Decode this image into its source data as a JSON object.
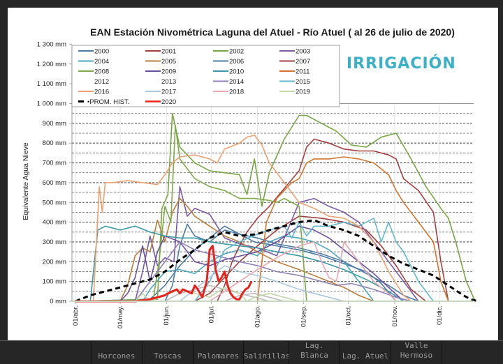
{
  "window": {
    "bottom_tabs": [
      "Horcones",
      "Toscas",
      "Palomares",
      "Salinillas",
      "Lag. Blanca",
      "Lag. Atuel",
      "Valle Hermoso"
    ]
  },
  "logo": {
    "text": "IRRIGACIÓN",
    "color": "#3bb0c9"
  },
  "chart_data": {
    "type": "line",
    "title": "EAN Estación Nivométrica Laguna del Atuel - Río Atuel  ( al 26 de julio de 2020)",
    "xlabel": "",
    "ylabel": "Equivalente Agua Nieve",
    "ylim": [
      0,
      1300
    ],
    "yticks": [
      "0 mm",
      "100 mm",
      "200 mm",
      "300 mm",
      "400 mm",
      "500 mm",
      "600 mm",
      "700 mm",
      "800 mm",
      "900 mm",
      "1 000 mm",
      "1 100 mm",
      "1 200 mm",
      "1 300 mm"
    ],
    "ytick_values": [
      0,
      100,
      200,
      300,
      400,
      500,
      600,
      700,
      800,
      900,
      1000,
      1100,
      1200,
      1300
    ],
    "x_unit": "days since 01/abr.",
    "xlim": [
      0,
      274
    ],
    "xticks": [
      "01/abr.",
      "01/may.",
      "01/jun.",
      "01/jul.",
      "01/ago.",
      "01/sep.",
      "01/oct.",
      "01/nov.",
      "01/dic."
    ],
    "xtick_values": [
      0,
      30,
      61,
      91,
      122,
      153,
      183,
      214,
      244
    ],
    "grid": "horizontal dashed",
    "legend_position": "top-left",
    "legend": [
      "2000",
      "2001",
      "2002",
      "2003",
      "2004",
      "2005",
      "2006",
      "2007",
      "2008",
      "2009",
      "2010",
      "2011",
      "2012",
      "2013",
      "2014",
      "2015",
      "2016",
      "2017",
      "2018",
      "2019",
      "PROM. HIST.",
      "2020"
    ],
    "series": [
      {
        "name": "2000",
        "color": "#4a7aa8",
        "style": "solid",
        "x": [
          0,
          50,
          60,
          70,
          80,
          90,
          100,
          110,
          120,
          135,
          150,
          165,
          180,
          195,
          205,
          215
        ],
        "y": [
          0,
          10,
          80,
          180,
          260,
          320,
          380,
          340,
          300,
          280,
          260,
          230,
          190,
          150,
          90,
          0
        ]
      },
      {
        "name": "2001",
        "color": "#a0403e",
        "style": "solid",
        "x": [
          0,
          80,
          90,
          100,
          110,
          122,
          135,
          150,
          165,
          180,
          195,
          205,
          215,
          225,
          235
        ],
        "y": [
          0,
          0,
          40,
          120,
          200,
          280,
          360,
          430,
          420,
          400,
          360,
          280,
          180,
          60,
          0
        ]
      },
      {
        "name": "2002",
        "color": "#77a744",
        "style": "solid",
        "x": [
          0,
          55,
          58,
          62,
          65,
          70,
          80,
          90,
          100,
          110,
          115,
          120,
          125,
          130,
          140,
          150,
          155,
          160,
          165,
          175,
          185,
          195,
          205,
          215,
          225,
          235,
          245,
          250,
          255,
          262,
          268
        ],
        "y": [
          0,
          10,
          470,
          540,
          950,
          780,
          700,
          660,
          650,
          640,
          540,
          720,
          480,
          650,
          820,
          940,
          940,
          920,
          900,
          860,
          790,
          780,
          830,
          850,
          720,
          580,
          470,
          420,
          300,
          100,
          0
        ]
      },
      {
        "name": "2003",
        "color": "#7b5aa6",
        "style": "solid",
        "x": [
          0,
          40,
          45,
          50,
          55,
          60,
          66,
          70,
          75,
          80,
          90,
          100,
          110,
          122,
          135,
          150,
          160,
          170,
          180,
          190,
          200,
          210,
          220,
          230
        ],
        "y": [
          0,
          0,
          150,
          330,
          180,
          220,
          200,
          580,
          430,
          470,
          440,
          320,
          290,
          270,
          230,
          500,
          520,
          480,
          450,
          400,
          300,
          200,
          100,
          0
        ]
      },
      {
        "name": "2004",
        "color": "#4ba7c1",
        "style": "solid",
        "x": [
          0,
          45,
          50,
          60,
          70,
          80,
          90,
          100,
          110,
          122,
          130,
          140,
          150,
          160,
          170,
          180,
          190,
          200
        ],
        "y": [
          0,
          0,
          60,
          150,
          160,
          140,
          200,
          240,
          260,
          230,
          300,
          330,
          320,
          300,
          260,
          200,
          100,
          0
        ]
      },
      {
        "name": "2005",
        "color": "#b97f3b",
        "style": "solid",
        "x": [
          0,
          30,
          35,
          40,
          45,
          50,
          55,
          60,
          65,
          70,
          75,
          80,
          90,
          100,
          110,
          122,
          135,
          150,
          160,
          170,
          180,
          190,
          200
        ],
        "y": [
          0,
          0,
          80,
          230,
          270,
          250,
          410,
          300,
          450,
          520,
          480,
          430,
          380,
          330,
          300,
          250,
          200,
          160,
          130,
          100,
          70,
          30,
          0
        ]
      },
      {
        "name": "2006",
        "color": "#4c7ea8",
        "style": "solid",
        "x": [
          0,
          60,
          65,
          70,
          75,
          80,
          90,
          100,
          110,
          122,
          135,
          150,
          165,
          180,
          190,
          200,
          210,
          220,
          230
        ],
        "y": [
          0,
          0,
          80,
          280,
          390,
          330,
          300,
          360,
          340,
          320,
          290,
          270,
          240,
          200,
          160,
          120,
          80,
          30,
          0
        ]
      },
      {
        "name": "2007",
        "color": "#a33f3f",
        "style": "solid",
        "x": [
          0,
          95,
          100,
          105,
          110,
          115,
          122,
          130,
          140,
          150,
          155,
          160,
          170,
          180,
          190,
          200,
          210,
          215,
          220,
          230,
          240,
          245,
          250
        ],
        "y": [
          0,
          0,
          80,
          200,
          280,
          350,
          420,
          480,
          570,
          660,
          780,
          820,
          800,
          770,
          760,
          760,
          740,
          720,
          620,
          560,
          450,
          200,
          0
        ]
      },
      {
        "name": "2008",
        "color": "#7faa48",
        "style": "solid",
        "x": [
          0,
          52,
          56,
          60,
          64,
          67,
          70,
          80,
          90,
          100,
          110,
          120,
          130,
          135,
          140,
          145,
          150,
          155
        ],
        "y": [
          0,
          0,
          200,
          480,
          400,
          890,
          720,
          620,
          580,
          560,
          520,
          520,
          510,
          500,
          520,
          500,
          480,
          0
        ]
      },
      {
        "name": "2009",
        "color": "#6b4f9e",
        "style": "solid",
        "x": [
          0,
          30,
          35,
          40,
          45,
          50,
          55,
          60,
          70,
          80,
          90,
          100,
          122,
          135,
          150,
          160,
          170,
          180,
          190,
          200,
          210,
          220
        ],
        "y": [
          0,
          0,
          40,
          120,
          280,
          100,
          250,
          330,
          300,
          200,
          180,
          210,
          250,
          300,
          380,
          360,
          320,
          260,
          200,
          140,
          70,
          0
        ]
      },
      {
        "name": "2010",
        "color": "#3c99a8",
        "style": "solid",
        "x": [
          0,
          10,
          15,
          20,
          30,
          40,
          50,
          60,
          70,
          80,
          90,
          100,
          110,
          122,
          135,
          150,
          165,
          180,
          195,
          210,
          220
        ],
        "y": [
          0,
          0,
          360,
          380,
          360,
          380,
          350,
          330,
          320,
          320,
          300,
          290,
          280,
          270,
          250,
          230,
          200,
          160,
          110,
          50,
          0
        ]
      },
      {
        "name": "2011",
        "color": "#d2752f",
        "style": "solid",
        "x": [
          0,
          122,
          128,
          135,
          140,
          145,
          150,
          155,
          160,
          170,
          180,
          190,
          200,
          210,
          215,
          220,
          230,
          240,
          245,
          250
        ],
        "y": [
          0,
          0,
          400,
          520,
          560,
          600,
          620,
          700,
          720,
          720,
          730,
          720,
          700,
          640,
          560,
          500,
          400,
          300,
          100,
          0
        ]
      },
      {
        "name": "2012",
        "color": "#bcbcbc",
        "style": "solid",
        "x": [
          0,
          60,
          70,
          80,
          90,
          100,
          110,
          120,
          130
        ],
        "y": [
          0,
          0,
          40,
          60,
          80,
          60,
          40,
          20,
          0
        ]
      },
      {
        "name": "2013",
        "color": "#bcbcbc",
        "style": "solid",
        "x": [
          0,
          100,
          110,
          120,
          130,
          140
        ],
        "y": [
          0,
          0,
          30,
          40,
          20,
          0
        ]
      },
      {
        "name": "2014",
        "color": "#9080b8",
        "style": "solid",
        "x": [
          0,
          40,
          50,
          60,
          70,
          80,
          90,
          100,
          110,
          122,
          135,
          150,
          165,
          175,
          185,
          200,
          215,
          225
        ],
        "y": [
          0,
          0,
          100,
          200,
          300,
          260,
          240,
          220,
          200,
          180,
          150,
          130,
          100,
          80,
          90,
          60,
          20,
          0
        ]
      },
      {
        "name": "2015",
        "color": "#62b7d0",
        "style": "solid",
        "x": [
          0,
          80,
          90,
          100,
          110,
          122,
          130,
          140,
          145,
          150,
          155,
          160,
          170,
          180,
          190,
          200,
          205,
          210,
          215,
          220,
          230,
          240
        ],
        "y": [
          0,
          0,
          100,
          260,
          300,
          340,
          360,
          380,
          320,
          400,
          330,
          380,
          380,
          400,
          380,
          420,
          300,
          400,
          300,
          250,
          100,
          0
        ]
      },
      {
        "name": "2016",
        "color": "#eea070",
        "style": "solid",
        "x": [
          0,
          12,
          16,
          18,
          20,
          25,
          35,
          45,
          55,
          60,
          65,
          70,
          80,
          90,
          95,
          100,
          110,
          115,
          120,
          125,
          130,
          135,
          140,
          150,
          160,
          170,
          180,
          190,
          200,
          210,
          220,
          225
        ],
        "y": [
          0,
          0,
          580,
          450,
          600,
          600,
          610,
          600,
          590,
          640,
          700,
          730,
          740,
          720,
          700,
          770,
          800,
          830,
          840,
          790,
          700,
          650,
          600,
          500,
          470,
          430,
          420,
          380,
          300,
          150,
          30,
          0
        ]
      },
      {
        "name": "2017",
        "color": "#aac8e0",
        "style": "solid",
        "x": [
          0,
          70,
          80,
          90,
          100,
          110,
          122,
          135,
          150,
          160,
          170,
          180
        ],
        "y": [
          0,
          0,
          60,
          120,
          180,
          150,
          130,
          100,
          60,
          40,
          20,
          0
        ]
      },
      {
        "name": "2018",
        "color": "#e8a8b0",
        "style": "solid",
        "x": [
          0,
          90,
          100,
          110,
          122,
          135,
          150,
          160,
          165,
          170,
          175,
          180,
          190,
          200,
          210,
          215
        ],
        "y": [
          0,
          0,
          50,
          100,
          160,
          220,
          280,
          300,
          200,
          120,
          100,
          300,
          200,
          100,
          40,
          0
        ]
      },
      {
        "name": "2019",
        "color": "#c2d8a8",
        "style": "solid",
        "x": [
          0,
          40,
          45,
          50,
          60,
          70,
          80,
          90,
          100,
          110,
          115,
          120,
          130,
          140,
          150
        ],
        "y": [
          0,
          0,
          40,
          0,
          30,
          60,
          40,
          20,
          70,
          40,
          0,
          20,
          40,
          20,
          0
        ]
      },
      {
        "name": "PROM. HIST.",
        "color": "#000000",
        "style": "dashed",
        "x": [
          0,
          10,
          20,
          30,
          40,
          50,
          60,
          70,
          80,
          90,
          100,
          110,
          122,
          130,
          140,
          150,
          160,
          170,
          180,
          190,
          200,
          210,
          220,
          230,
          240,
          250,
          260,
          265,
          270
        ],
        "y": [
          0,
          30,
          50,
          70,
          90,
          110,
          150,
          210,
          260,
          320,
          350,
          330,
          340,
          360,
          380,
          400,
          410,
          380,
          360,
          330,
          280,
          230,
          190,
          160,
          130,
          80,
          30,
          10,
          0
        ]
      },
      {
        "name": "2020",
        "color": "#e8221b",
        "style": "solid",
        "bold": true,
        "x": [
          0,
          20,
          40,
          50,
          55,
          60,
          62,
          65,
          68,
          70,
          72,
          75,
          78,
          80,
          82,
          85,
          88,
          90,
          92,
          94,
          96,
          98,
          100,
          102,
          104,
          106,
          108,
          110,
          112,
          114,
          116,
          118
        ],
        "y": [
          0,
          0,
          0,
          10,
          20,
          30,
          40,
          50,
          60,
          40,
          60,
          50,
          40,
          80,
          60,
          20,
          100,
          260,
          280,
          160,
          100,
          120,
          150,
          80,
          40,
          20,
          10,
          10,
          40,
          60,
          70,
          100
        ]
      }
    ]
  }
}
